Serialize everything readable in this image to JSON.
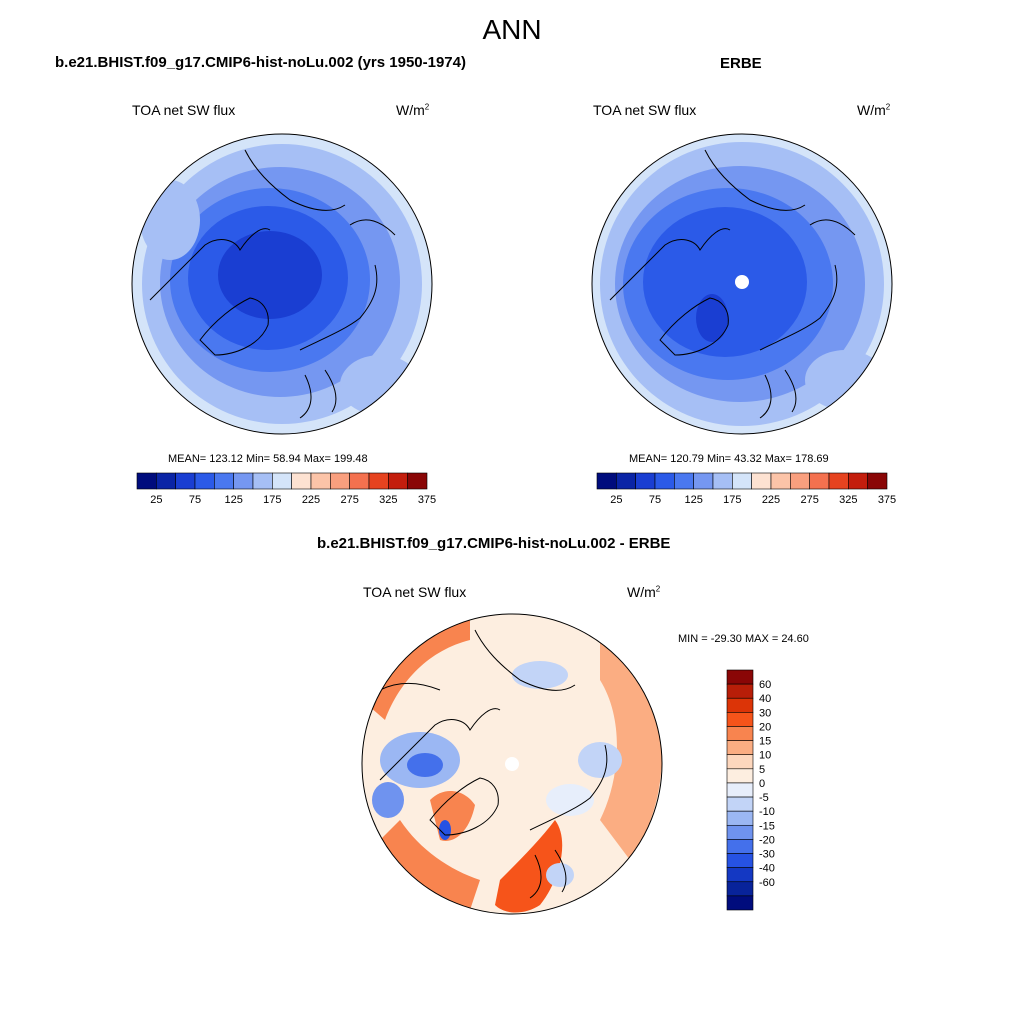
{
  "figure": {
    "title": "ANN",
    "diff_title": "b.e21.BHIST.f09_g17.CMIP6-hist-noLu.002 - ERBE"
  },
  "panels": [
    {
      "title": "b.e21.BHIST.f09_g17.CMIP6-hist-noLu.002 (yrs 1950-1974)",
      "variable": "TOA net SW flux",
      "units": "W/m",
      "units_exp": "2",
      "stats": "MEAN= 123.12  Min=  58.94  Max= 199.48"
    },
    {
      "title": "ERBE",
      "variable": "TOA net SW flux",
      "units": "W/m",
      "units_exp": "2",
      "stats": "MEAN= 120.79  Min=  43.32  Max= 178.69"
    },
    {
      "variable": "TOA net SW flux",
      "units": "W/m",
      "units_exp": "2",
      "stats": "MIN = -29.30 MAX =  24.60"
    }
  ],
  "colorbar_abs": {
    "colors": [
      "#000c7d",
      "#0a24a6",
      "#1a3ed2",
      "#2b5ae8",
      "#4a78f0",
      "#7597f1",
      "#a6bff5",
      "#d4e4f9",
      "#fde2d2",
      "#fcc4a8",
      "#f99f7e",
      "#f4714f",
      "#e6431f",
      "#c41e0d",
      "#8a0606"
    ],
    "tick_labels": [
      "25",
      "75",
      "125",
      "175",
      "225",
      "275",
      "325",
      "375"
    ]
  },
  "colorbar_diff": {
    "colors": [
      "#8a0606",
      "#b81e08",
      "#dc3407",
      "#f6541a",
      "#f8844f",
      "#fbad82",
      "#fdd7bd",
      "#fdeee0",
      "#e7eefb",
      "#c2d4f7",
      "#9bb7f3",
      "#6f93ef",
      "#4470eb",
      "#2652e3",
      "#1438c3",
      "#08239a",
      "#000c7d"
    ],
    "tick_labels": [
      "60",
      "40",
      "30",
      "20",
      "15",
      "10",
      "5",
      "0",
      "-5",
      "-10",
      "-15",
      "-20",
      "-30",
      "-40",
      "-60"
    ]
  }
}
